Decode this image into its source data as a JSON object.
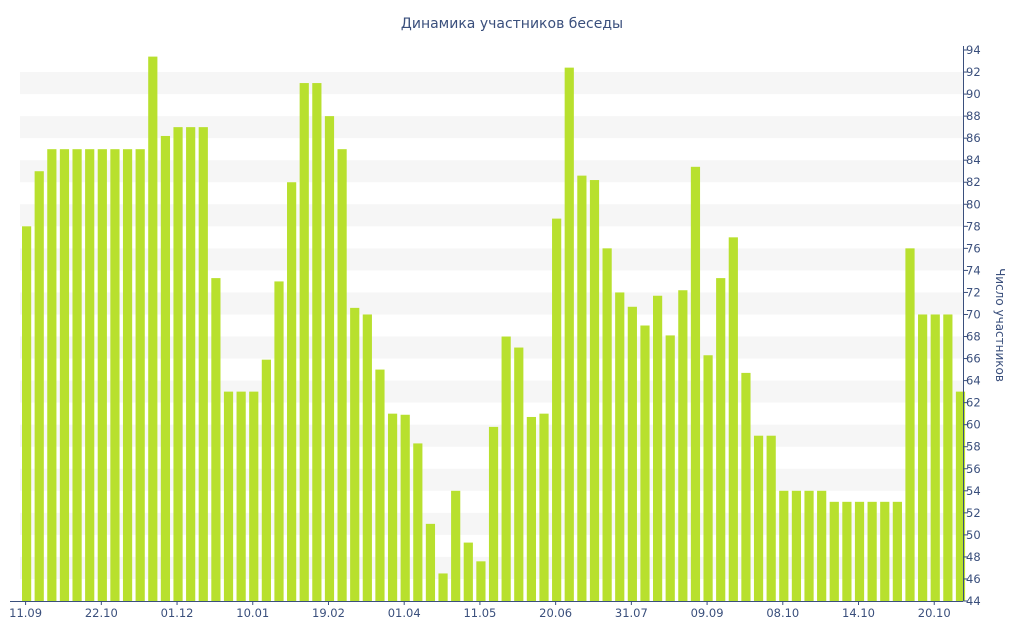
{
  "chart_data": {
    "type": "bar",
    "title": "Динамика участников беседы",
    "ylabel": "Число участников",
    "xlabel": "",
    "ylim": [
      44,
      94
    ],
    "y_ticks": [
      44,
      46,
      48,
      50,
      52,
      54,
      56,
      58,
      60,
      62,
      64,
      66,
      68,
      70,
      72,
      74,
      76,
      78,
      80,
      82,
      84,
      86,
      88,
      90,
      92,
      94
    ],
    "y_axis_position": "right",
    "grid": "alternating horizontal bands",
    "bar_color": "#b8e02e",
    "band_color": "#f6f6f6",
    "text_color": "#3a4f7c",
    "x_tick_labels": [
      {
        "label": "11.09",
        "index": 0
      },
      {
        "label": "22.10",
        "index": 6
      },
      {
        "label": "01.12",
        "index": 12
      },
      {
        "label": "10.01",
        "index": 18
      },
      {
        "label": "19.02",
        "index": 24
      },
      {
        "label": "01.04",
        "index": 30
      },
      {
        "label": "11.05",
        "index": 36
      },
      {
        "label": "20.06",
        "index": 42
      },
      {
        "label": "31.07",
        "index": 48
      },
      {
        "label": "09.09",
        "index": 54
      },
      {
        "label": "08.10",
        "index": 60
      },
      {
        "label": "14.10",
        "index": 66
      },
      {
        "label": "20.10",
        "index": 72
      }
    ],
    "values": [
      78,
      83,
      85,
      85,
      85,
      85,
      85,
      85,
      85,
      85,
      93.4,
      86.2,
      87,
      87,
      87,
      73.3,
      63,
      63,
      63,
      65.9,
      73,
      82,
      91,
      91,
      88,
      85,
      70.6,
      70,
      65,
      61,
      60.9,
      58.3,
      51,
      46.5,
      54,
      49.3,
      47.6,
      59.8,
      68,
      67,
      60.7,
      61,
      78.7,
      92.4,
      82.6,
      82.2,
      76,
      72,
      70.7,
      69,
      71.7,
      68.1,
      72.2,
      83.4,
      66.3,
      73.3,
      77,
      64.7,
      59,
      59,
      54,
      54,
      54,
      54,
      53,
      53,
      53,
      53,
      53,
      53,
      76,
      70,
      70,
      70,
      63
    ]
  }
}
